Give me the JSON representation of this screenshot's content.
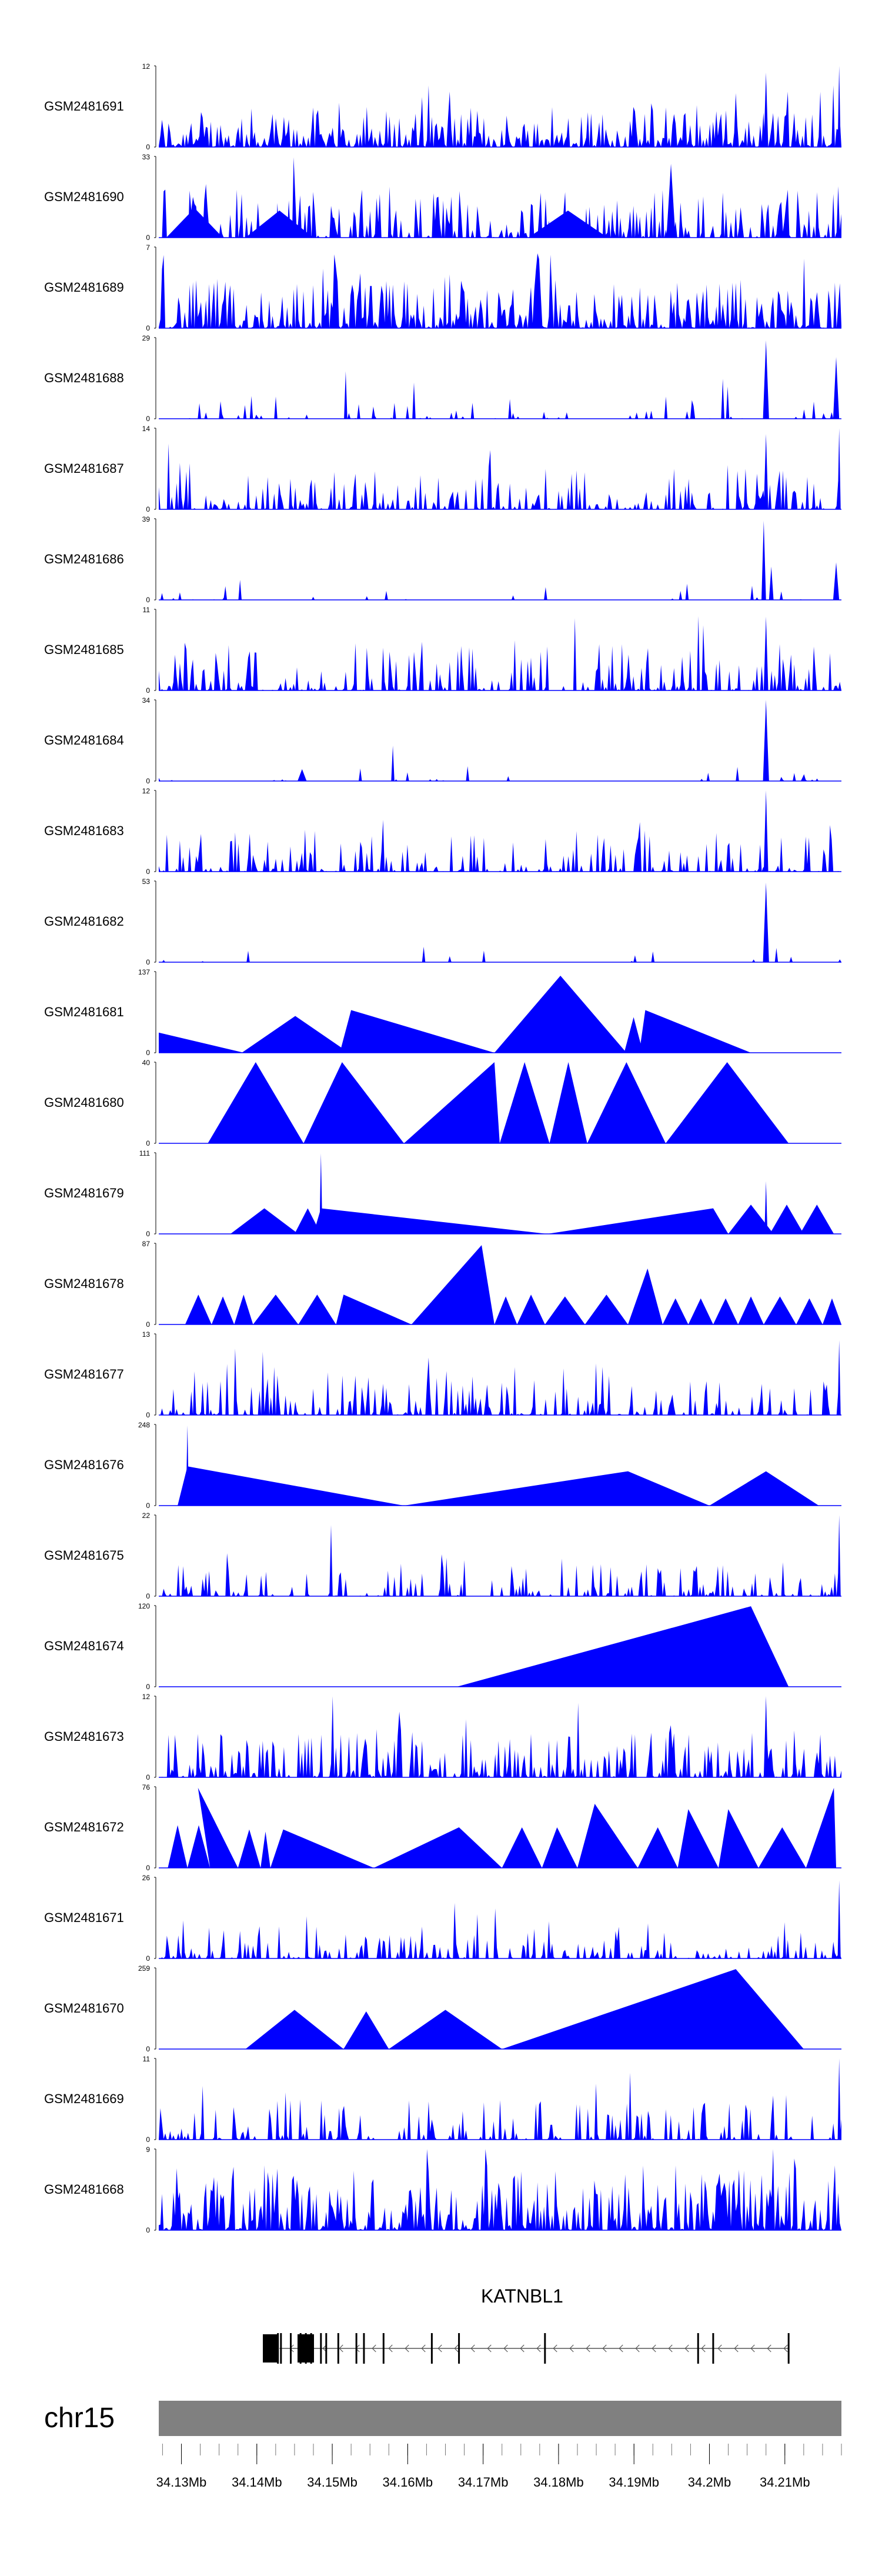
{
  "chart_data": {
    "type": "genome-coverage-tracks",
    "chromosome": "chr15",
    "gene": {
      "name": "KATNBL1",
      "strand": "-",
      "start_mb": 34.143,
      "end_mb": 34.2105,
      "exons_mb": [
        34.1428,
        34.1432,
        34.1445,
        34.1458,
        34.1465,
        34.1472,
        34.1485,
        34.1492,
        34.1508,
        34.1532,
        34.1542,
        34.1568,
        34.1632,
        34.1668,
        34.1782,
        34.1985,
        34.2005,
        34.2105
      ]
    },
    "xlim_mb": [
      34.127,
      34.2175
    ],
    "ticks": [
      {
        "value": 34.13,
        "label": "34.13Mb"
      },
      {
        "value": 34.14,
        "label": "34.14Mb"
      },
      {
        "value": 34.15,
        "label": "34.15Mb"
      },
      {
        "value": 34.16,
        "label": "34.16Mb"
      },
      {
        "value": 34.17,
        "label": "34.17Mb"
      },
      {
        "value": 34.18,
        "label": "34.18Mb"
      },
      {
        "value": 34.19,
        "label": "34.19Mb"
      },
      {
        "value": 34.2,
        "label": "34.2Mb"
      },
      {
        "value": 34.21,
        "label": "34.21Mb"
      }
    ],
    "tracks": [
      {
        "name": "GSM2481691",
        "ymax": "12",
        "ymin": "0",
        "kind": "dense",
        "density": 1.0,
        "noise": 0.5,
        "peaks": [
          [
            34.2075,
            11,
            0.0003
          ],
          [
            34.2172,
            12,
            0.0002
          ]
        ]
      },
      {
        "name": "GSM2481690",
        "ymax": "33",
        "ymin": "0",
        "kind": "sparse",
        "density": 0.7,
        "noise": 0.6,
        "peaks": [
          [
            34.1949,
            30,
            0.0006
          ]
        ],
        "triangles": [
          [
            34.128,
            34.1355,
            12
          ],
          [
            34.1385,
            34.1475,
            11
          ],
          [
            34.176,
            34.1865,
            11
          ]
        ]
      },
      {
        "name": "GSM2481689",
        "ymax": "7",
        "ymin": "0",
        "kind": "dense",
        "density": 1.0,
        "noise": 0.6,
        "peaks": []
      },
      {
        "name": "GSM2481688",
        "ymax": "29",
        "ymin": "0",
        "kind": "dense",
        "density": 0.18,
        "noise": 0.3,
        "peaks": [
          [
            34.2075,
            28,
            0.0004
          ],
          [
            34.2168,
            22,
            0.0004
          ]
        ]
      },
      {
        "name": "GSM2481687",
        "ymax": "14",
        "ymin": "0",
        "kind": "dense",
        "density": 0.55,
        "noise": 0.5,
        "peaks": [
          [
            34.2075,
            13,
            0.0003
          ],
          [
            34.2172,
            14,
            0.0002
          ]
        ]
      },
      {
        "name": "GSM2481686",
        "ymax": "39",
        "ymin": "0",
        "kind": "dense",
        "density": 0.05,
        "noise": 0.2,
        "peaks": [
          [
            34.2072,
            38,
            0.0003
          ],
          [
            34.2082,
            16,
            0.0003
          ],
          [
            34.2168,
            18,
            0.0004
          ]
        ]
      },
      {
        "name": "GSM2481685",
        "ymax": "11",
        "ymin": "0",
        "kind": "dense",
        "density": 0.6,
        "noise": 0.6,
        "peaks": [
          [
            34.2075,
            10,
            0.0003
          ]
        ]
      },
      {
        "name": "GSM2481684",
        "ymax": "34",
        "ymin": "0",
        "kind": "dense",
        "density": 0.07,
        "noise": 0.2,
        "peaks": [
          [
            34.2075,
            34,
            0.0004
          ],
          [
            34.146,
            5,
            0.0006
          ]
        ]
      },
      {
        "name": "GSM2481683",
        "ymax": "12",
        "ymin": "0",
        "kind": "dense",
        "density": 0.5,
        "noise": 0.5,
        "peaks": [
          [
            34.2075,
            12,
            0.0003
          ]
        ]
      },
      {
        "name": "GSM2481682",
        "ymax": "53",
        "ymin": "0",
        "kind": "dense",
        "density": 0.04,
        "noise": 0.2,
        "peaks": [
          [
            34.2075,
            52,
            0.0004
          ]
        ]
      },
      {
        "name": "GSM2481681",
        "ymax": "137",
        "ymin": "0",
        "kind": "triangles",
        "triangles": [
          [
            34.127,
            34.1383,
            34,
            34.127
          ],
          [
            34.138,
            34.1522,
            62
          ],
          [
            34.151,
            34.1715,
            72,
            34.1525
          ],
          [
            34.1715,
            34.189,
            130
          ],
          [
            34.1887,
            34.1912,
            60
          ],
          [
            34.1907,
            34.2055,
            72,
            34.1915
          ]
        ]
      },
      {
        "name": "GSM2481680",
        "ymax": "40",
        "ymin": "0",
        "kind": "triangles",
        "triangles": [
          [
            34.1335,
            34.1462,
            40
          ],
          [
            34.1462,
            34.1595,
            40,
            34.1513
          ],
          [
            34.1595,
            34.1722,
            40,
            34.1715
          ],
          [
            34.1722,
            34.1788,
            40
          ],
          [
            34.1788,
            34.1838,
            40
          ],
          [
            34.1838,
            34.1942,
            40
          ],
          [
            34.1942,
            34.2105,
            40
          ]
        ]
      },
      {
        "name": "GSM2481679",
        "ymax": "111",
        "ymin": "0",
        "kind": "triangles",
        "triangles": [
          [
            34.1365,
            34.1455,
            35
          ],
          [
            34.145,
            34.1485,
            35
          ],
          [
            34.1475,
            34.1785,
            35,
            34.1485
          ],
          [
            34.1785,
            34.2025,
            35,
            34.2005
          ],
          [
            34.2025,
            34.2085,
            40
          ],
          [
            34.208,
            34.2125,
            40
          ],
          [
            34.212,
            34.2165,
            40
          ]
        ],
        "peaks": [
          [
            34.1485,
            110,
            0.0002
          ],
          [
            34.2075,
            72,
            0.0002
          ]
        ]
      },
      {
        "name": "GSM2481678",
        "ymax": "87",
        "ymin": "0",
        "kind": "triangles",
        "triangles": [
          [
            34.1305,
            34.134,
            32
          ],
          [
            34.134,
            34.137,
            30
          ],
          [
            34.137,
            34.1395,
            32
          ],
          [
            34.1395,
            34.1455,
            32
          ],
          [
            34.1455,
            34.1505,
            32
          ],
          [
            34.1505,
            34.1605,
            32,
            34.1515
          ],
          [
            34.1605,
            34.1715,
            85,
            34.1698
          ],
          [
            34.1715,
            34.1745,
            30
          ],
          [
            34.1745,
            34.1782,
            32
          ],
          [
            34.1782,
            34.1835,
            30
          ],
          [
            34.1835,
            34.1892,
            32
          ],
          [
            34.1892,
            34.1938,
            60,
            34.1918
          ],
          [
            34.1938,
            34.1972,
            28
          ],
          [
            34.1972,
            34.2005,
            28
          ],
          [
            34.2005,
            34.2038,
            28
          ],
          [
            34.2038,
            34.2072,
            30
          ],
          [
            34.2072,
            34.2115,
            30
          ],
          [
            34.2115,
            34.215,
            28
          ],
          [
            34.215,
            34.2175,
            28
          ]
        ]
      },
      {
        "name": "GSM2481677",
        "ymax": "13",
        "ymin": "0",
        "kind": "dense",
        "density": 0.55,
        "noise": 0.5,
        "peaks": [
          [
            34.2172,
            12,
            0.0002
          ]
        ]
      },
      {
        "name": "GSM2481676",
        "ymax": "248",
        "ymin": "0",
        "kind": "triangles",
        "triangles": [
          [
            34.1295,
            34.1595,
            120,
            34.1308
          ],
          [
            34.1595,
            34.2,
            105,
            34.1892
          ],
          [
            34.2,
            34.2145,
            105,
            34.2075
          ]
        ],
        "peaks": [
          [
            34.1308,
            245,
            0.0002
          ]
        ]
      },
      {
        "name": "GSM2481675",
        "ymax": "22",
        "ymin": "0",
        "kind": "dense",
        "density": 0.45,
        "noise": 0.4,
        "peaks": [
          [
            34.2172,
            22,
            0.0002
          ]
        ]
      },
      {
        "name": "GSM2481674",
        "ymax": "120",
        "ymin": "0",
        "kind": "triangles",
        "triangles": [
          [
            34.1665,
            34.2105,
            119,
            34.2055
          ]
        ]
      },
      {
        "name": "GSM2481673",
        "ymax": "12",
        "ymin": "0",
        "kind": "dense",
        "density": 0.7,
        "noise": 0.6,
        "peaks": [
          [
            34.2075,
            12,
            0.0003
          ]
        ]
      },
      {
        "name": "GSM2481672",
        "ymax": "76",
        "ymin": "0",
        "kind": "triangles",
        "triangles": [
          [
            34.1282,
            34.1308,
            40
          ],
          [
            34.1308,
            34.1338,
            40
          ],
          [
            34.1338,
            34.1375,
            75,
            34.1322
          ],
          [
            34.1375,
            34.1405,
            36
          ],
          [
            34.1405,
            34.1418,
            34
          ],
          [
            34.1418,
            34.1555,
            36,
            34.1435
          ],
          [
            34.1555,
            34.1725,
            38,
            34.1668
          ],
          [
            34.1725,
            34.1778,
            38
          ],
          [
            34.1778,
            34.1825,
            38,
            34.1798
          ],
          [
            34.1825,
            34.1905,
            60,
            34.1848
          ],
          [
            34.1905,
            34.1958,
            38
          ],
          [
            34.1958,
            34.2012,
            55,
            34.1972
          ],
          [
            34.2012,
            34.2065,
            55,
            34.2025
          ],
          [
            34.2065,
            34.2128,
            38
          ],
          [
            34.2128,
            34.2168,
            75,
            34.2165
          ]
        ]
      },
      {
        "name": "GSM2481671",
        "ymax": "26",
        "ymin": "0",
        "kind": "dense",
        "density": 0.5,
        "noise": 0.45,
        "peaks": [
          [
            34.2172,
            25,
            0.0002
          ]
        ]
      },
      {
        "name": "GSM2481670",
        "ymax": "259",
        "ymin": "0",
        "kind": "triangles",
        "triangles": [
          [
            34.1385,
            34.1515,
            125
          ],
          [
            34.1515,
            34.1575,
            120
          ],
          [
            34.1575,
            34.1725,
            125
          ],
          [
            34.1725,
            34.2125,
            255,
            34.2035
          ]
        ]
      },
      {
        "name": "GSM2481669",
        "ymax": "11",
        "ymin": "0",
        "kind": "dense",
        "density": 0.5,
        "noise": 0.5,
        "peaks": [
          [
            34.2172,
            11,
            0.0002
          ]
        ]
      },
      {
        "name": "GSM2481668",
        "ymax": "9",
        "ymin": "0",
        "kind": "dense",
        "density": 1.0,
        "noise": 0.8,
        "peaks": []
      }
    ],
    "fill_color": "#0000ff",
    "stroke_color": "#000000",
    "ideogram_color": "#808080"
  }
}
